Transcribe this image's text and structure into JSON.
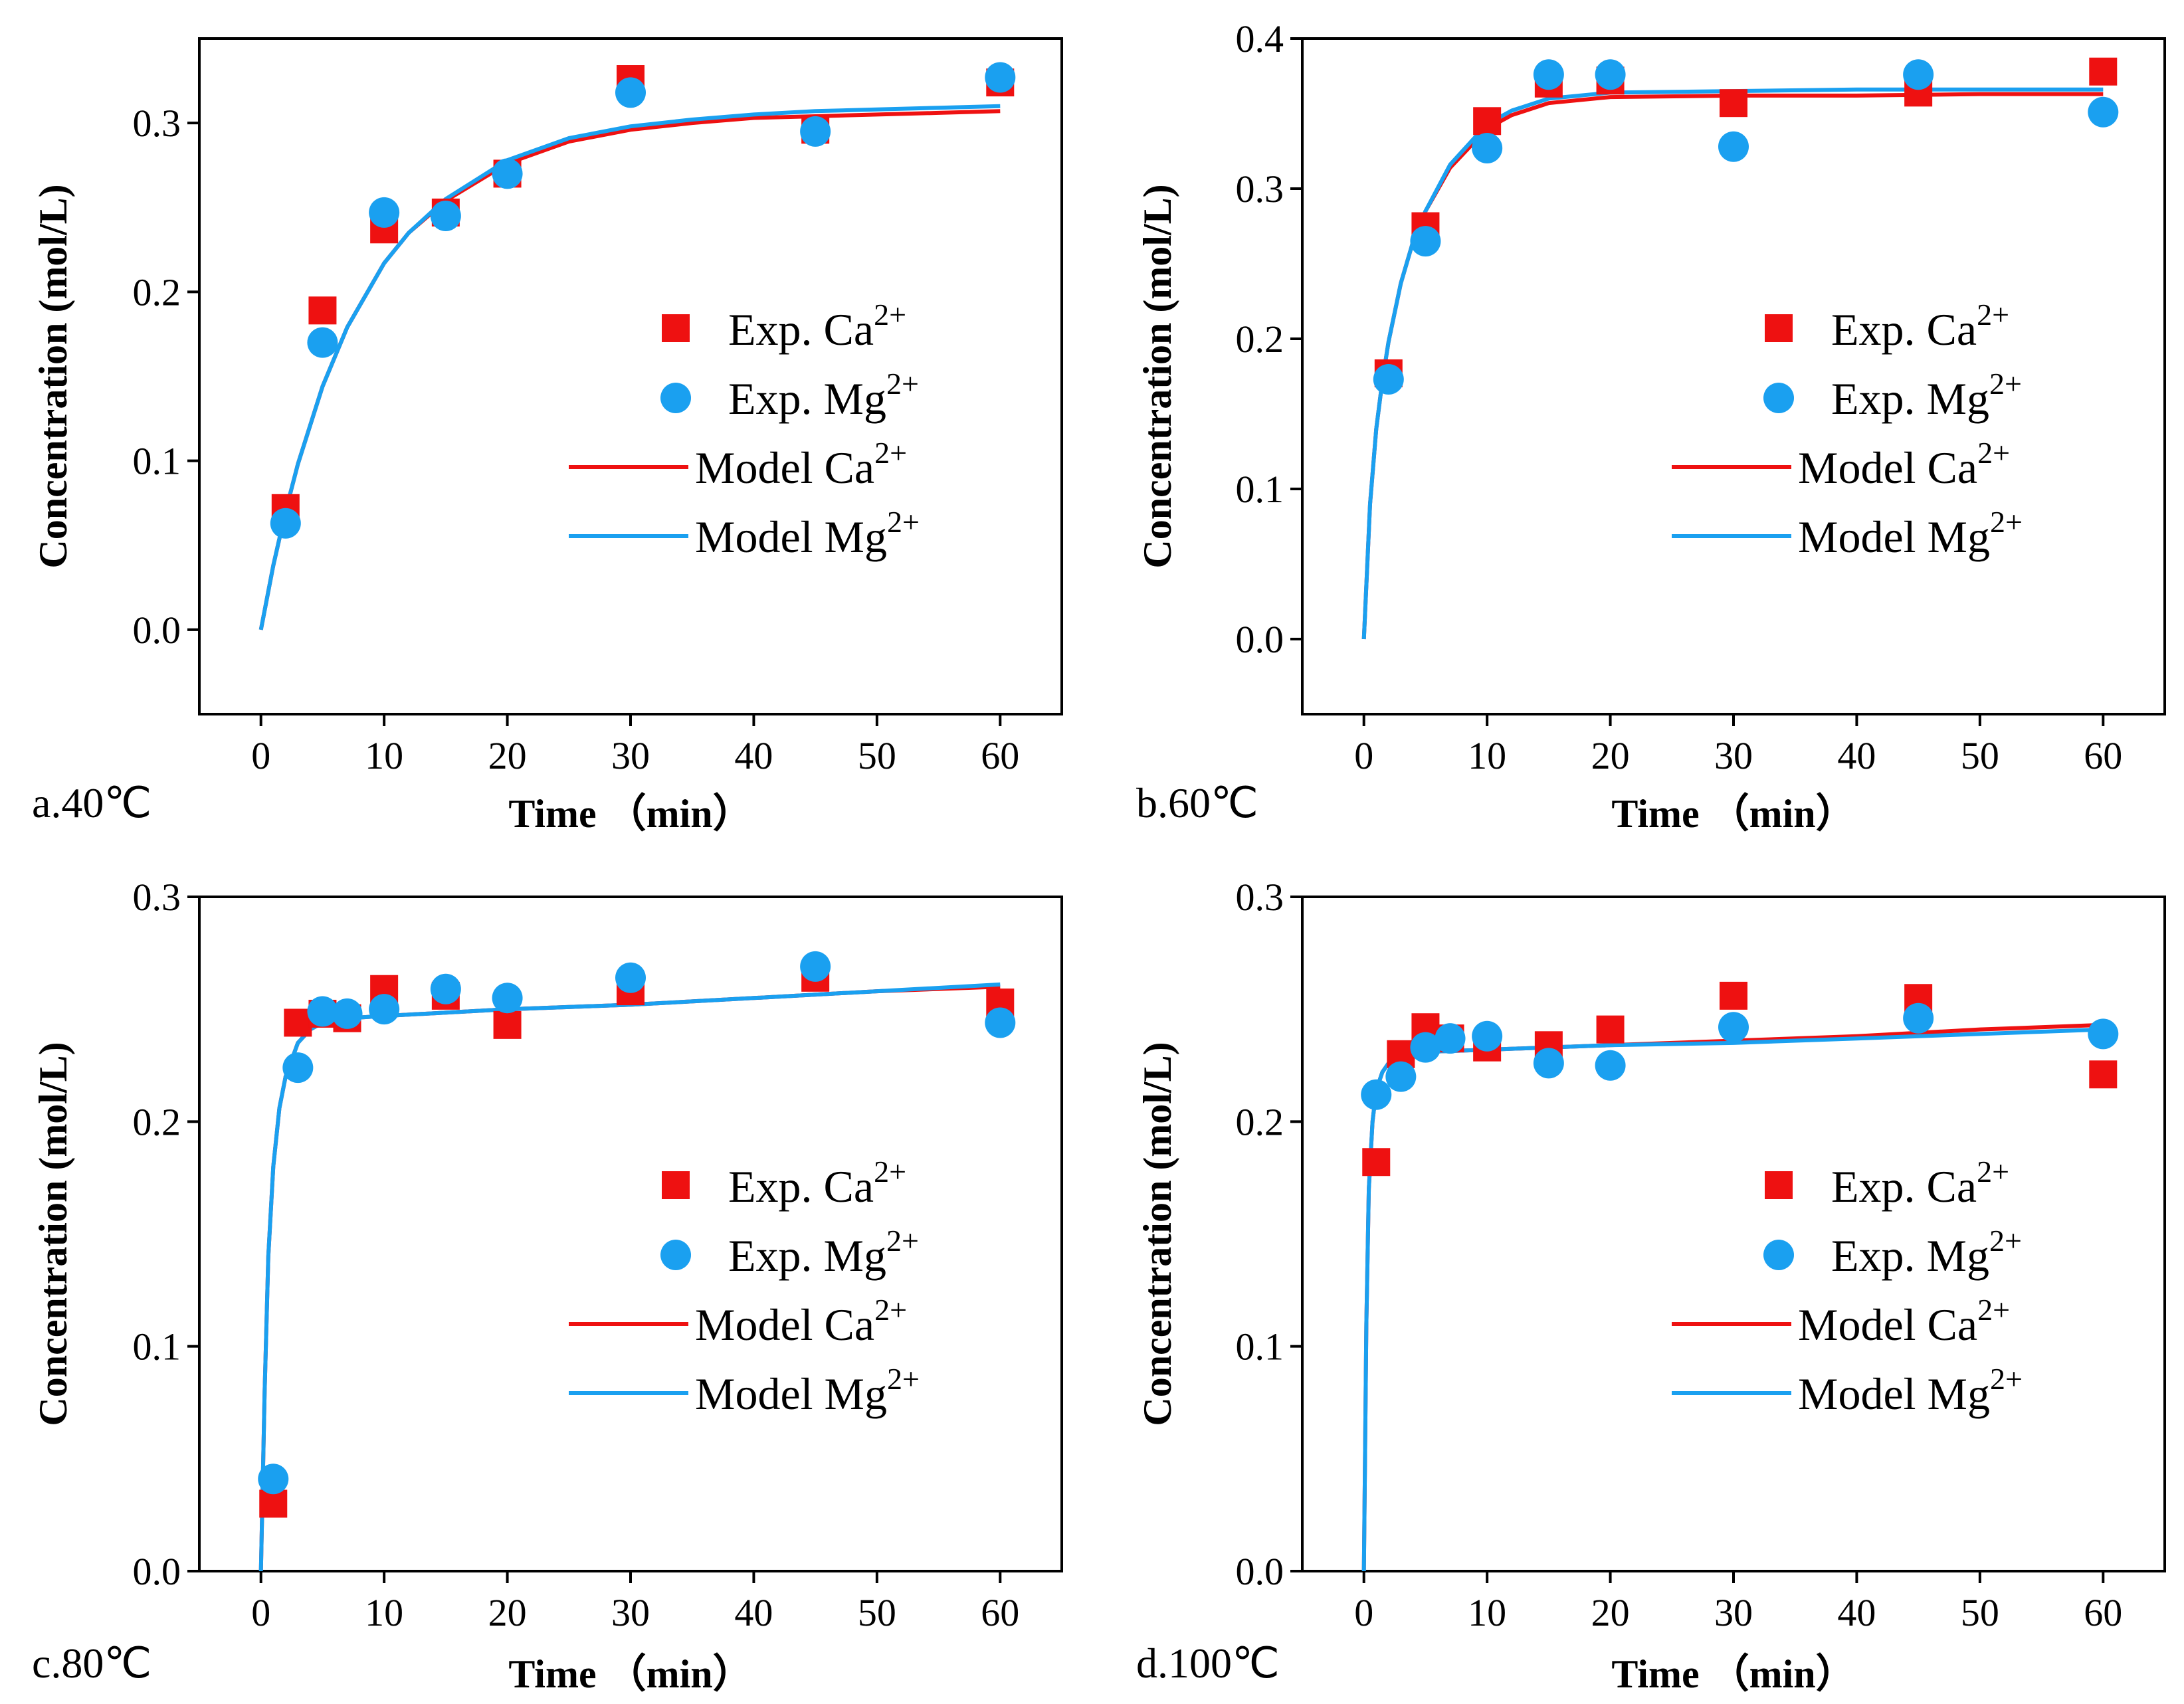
{
  "colors": {
    "ca": "#ee1111",
    "mg": "#1aa0f0",
    "axis": "#000000"
  },
  "chart_data": [
    {
      "type": "scatter",
      "panel_label": "a.40℃",
      "xlabel": "Time （min）",
      "ylabel": "Concentration (mol/L)",
      "xlim": [
        -5,
        65
      ],
      "ylim": [
        -0.05,
        0.35
      ],
      "xticks": [
        0,
        10,
        20,
        30,
        40,
        50,
        60
      ],
      "xtick_labels": [
        "0",
        "10",
        "20",
        "30",
        "40",
        "50",
        "60"
      ],
      "yticks": [
        0.0,
        0.1,
        0.2,
        0.3
      ],
      "ytick_labels": [
        "0.0",
        "0.1",
        "0.2",
        "0.3"
      ],
      "legend": {
        "placement": "center-right",
        "entries": [
          {
            "text": "Exp. Ca",
            "sup": "2+"
          },
          {
            "text": "Exp. Mg",
            "sup": "2+"
          },
          {
            "text": "Model Ca",
            "sup": "2+"
          },
          {
            "text": "Model Mg",
            "sup": "2+"
          }
        ]
      },
      "series": [
        {
          "name": "Exp. Ca2+",
          "kind": "square",
          "color": "#ee1111",
          "x": [
            2,
            5,
            10,
            15,
            20,
            30,
            45,
            60
          ],
          "y": [
            0.072,
            0.189,
            0.237,
            0.247,
            0.27,
            0.326,
            0.296,
            0.324
          ]
        },
        {
          "name": "Exp. Mg2+",
          "kind": "circle",
          "color": "#1aa0f0",
          "x": [
            2,
            5,
            10,
            15,
            20,
            30,
            45,
            60
          ],
          "y": [
            0.063,
            0.17,
            0.247,
            0.245,
            0.27,
            0.318,
            0.295,
            0.327
          ]
        },
        {
          "name": "Model Ca2+",
          "kind": "line",
          "color": "#ee1111",
          "x": [
            0,
            1,
            2,
            3,
            5,
            7,
            10,
            12,
            15,
            20,
            25,
            30,
            35,
            40,
            45,
            50,
            55,
            60
          ],
          "y": [
            0.0,
            0.038,
            0.07,
            0.098,
            0.144,
            0.179,
            0.217,
            0.235,
            0.254,
            0.276,
            0.289,
            0.296,
            0.3,
            0.303,
            0.304,
            0.305,
            0.306,
            0.307
          ]
        },
        {
          "name": "Model Mg2+",
          "kind": "line",
          "color": "#1aa0f0",
          "x": [
            0,
            1,
            2,
            3,
            5,
            7,
            10,
            12,
            15,
            20,
            25,
            30,
            35,
            40,
            45,
            50,
            55,
            60
          ],
          "y": [
            0.0,
            0.038,
            0.07,
            0.098,
            0.144,
            0.179,
            0.217,
            0.235,
            0.255,
            0.278,
            0.291,
            0.298,
            0.302,
            0.305,
            0.307,
            0.308,
            0.309,
            0.31
          ]
        }
      ]
    },
    {
      "type": "scatter",
      "panel_label": "b.60℃",
      "xlabel": "Time （min）",
      "ylabel": "Concentration (mol/L)",
      "xlim": [
        -5,
        65
      ],
      "ylim": [
        -0.05,
        0.4
      ],
      "xticks": [
        0,
        10,
        20,
        30,
        40,
        50,
        60
      ],
      "xtick_labels": [
        "0",
        "10",
        "20",
        "30",
        "40",
        "50",
        "60"
      ],
      "yticks": [
        0.0,
        0.1,
        0.2,
        0.3,
        0.4
      ],
      "ytick_labels": [
        "0.0",
        "0.1",
        "0.2",
        "0.3",
        "0.4"
      ],
      "legend": {
        "placement": "center-right",
        "entries": [
          {
            "text": "Exp. Ca",
            "sup": "2+"
          },
          {
            "text": "Exp. Mg",
            "sup": "2+"
          },
          {
            "text": "Model Ca",
            "sup": "2+"
          },
          {
            "text": "Model Mg",
            "sup": "2+"
          }
        ]
      },
      "series": [
        {
          "name": "Exp. Ca2+",
          "kind": "square",
          "color": "#ee1111",
          "x": [
            2,
            5,
            10,
            15,
            20,
            30,
            45,
            60
          ],
          "y": [
            0.177,
            0.275,
            0.345,
            0.37,
            0.372,
            0.357,
            0.364,
            0.378
          ]
        },
        {
          "name": "Exp. Mg2+",
          "kind": "circle",
          "color": "#1aa0f0",
          "x": [
            2,
            5,
            10,
            15,
            20,
            30,
            45,
            60
          ],
          "y": [
            0.173,
            0.265,
            0.327,
            0.376,
            0.376,
            0.328,
            0.376,
            0.351
          ]
        },
        {
          "name": "Model Ca2+",
          "kind": "line",
          "color": "#ee1111",
          "x": [
            0,
            0.5,
            1,
            1.5,
            2,
            3,
            4,
            5,
            7,
            10,
            12,
            15,
            20,
            30,
            40,
            50,
            60
          ],
          "y": [
            0.0,
            0.09,
            0.14,
            0.172,
            0.198,
            0.237,
            0.265,
            0.285,
            0.314,
            0.34,
            0.349,
            0.357,
            0.361,
            0.362,
            0.362,
            0.363,
            0.363
          ]
        },
        {
          "name": "Model Mg2+",
          "kind": "line",
          "color": "#1aa0f0",
          "x": [
            0,
            0.5,
            1,
            1.5,
            2,
            3,
            4,
            5,
            7,
            10,
            12,
            15,
            20,
            30,
            40,
            50,
            60
          ],
          "y": [
            0.0,
            0.09,
            0.14,
            0.172,
            0.198,
            0.237,
            0.265,
            0.285,
            0.316,
            0.343,
            0.352,
            0.36,
            0.364,
            0.365,
            0.366,
            0.366,
            0.366
          ]
        }
      ]
    },
    {
      "type": "scatter",
      "panel_label": "c.80℃",
      "xlabel": "Time （min）",
      "ylabel": "Concentration (mol/L)",
      "xlim": [
        -5,
        65
      ],
      "ylim": [
        0.0,
        0.3
      ],
      "xticks": [
        0,
        10,
        20,
        30,
        40,
        50,
        60
      ],
      "xtick_labels": [
        "0",
        "10",
        "20",
        "30",
        "40",
        "50",
        "60"
      ],
      "yticks": [
        0.0,
        0.1,
        0.2,
        0.3
      ],
      "ytick_labels": [
        "0.0",
        "0.1",
        "0.2",
        "0.3"
      ],
      "legend": {
        "placement": "center-right",
        "entries": [
          {
            "text": "Exp. Ca",
            "sup": "2+"
          },
          {
            "text": "Exp. Mg",
            "sup": "2+"
          },
          {
            "text": "Model Ca",
            "sup": "2+"
          },
          {
            "text": "Model Mg",
            "sup": "2+"
          }
        ]
      },
      "series": [
        {
          "name": "Exp. Ca2+",
          "kind": "square",
          "color": "#ee1111",
          "x": [
            1,
            3,
            5,
            7,
            10,
            15,
            20,
            30,
            45,
            60
          ],
          "y": [
            0.03,
            0.244,
            0.248,
            0.246,
            0.259,
            0.256,
            0.243,
            0.258,
            0.264,
            0.253
          ]
        },
        {
          "name": "Exp. Mg2+",
          "kind": "circle",
          "color": "#1aa0f0",
          "x": [
            1,
            3,
            5,
            7,
            10,
            15,
            20,
            30,
            45,
            60
          ],
          "y": [
            0.041,
            0.224,
            0.249,
            0.248,
            0.25,
            0.259,
            0.255,
            0.264,
            0.269,
            0.244
          ]
        },
        {
          "name": "Model Ca2+",
          "kind": "line",
          "color": "#ee1111",
          "x": [
            0,
            0.3,
            0.6,
            1,
            1.5,
            2,
            3,
            4,
            5,
            7,
            10,
            20,
            30,
            40,
            50,
            60
          ],
          "y": [
            0.0,
            0.08,
            0.14,
            0.18,
            0.206,
            0.22,
            0.235,
            0.241,
            0.244,
            0.246,
            0.247,
            0.25,
            0.252,
            0.255,
            0.258,
            0.26
          ]
        },
        {
          "name": "Model Mg2+",
          "kind": "line",
          "color": "#1aa0f0",
          "x": [
            0,
            0.3,
            0.6,
            1,
            1.5,
            2,
            3,
            4,
            5,
            7,
            10,
            20,
            30,
            40,
            50,
            60
          ],
          "y": [
            0.0,
            0.08,
            0.14,
            0.18,
            0.206,
            0.22,
            0.235,
            0.241,
            0.244,
            0.246,
            0.247,
            0.25,
            0.252,
            0.255,
            0.258,
            0.261
          ]
        }
      ]
    },
    {
      "type": "scatter",
      "panel_label": "d.100℃",
      "xlabel": "Time （min）",
      "ylabel": "Concentration (mol/L)",
      "xlim": [
        -5,
        65
      ],
      "ylim": [
        0.0,
        0.3
      ],
      "xticks": [
        0,
        10,
        20,
        30,
        40,
        50,
        60
      ],
      "xtick_labels": [
        "0",
        "10",
        "20",
        "30",
        "40",
        "50",
        "60"
      ],
      "yticks": [
        0.0,
        0.1,
        0.2,
        0.3
      ],
      "ytick_labels": [
        "0.0",
        "0.1",
        "0.2",
        "0.3"
      ],
      "legend": {
        "placement": "center-right",
        "entries": [
          {
            "text": "Exp. Ca",
            "sup": "2+"
          },
          {
            "text": "Exp. Mg",
            "sup": "2+"
          },
          {
            "text": "Model Ca",
            "sup": "2+"
          },
          {
            "text": "Model Mg",
            "sup": "2+"
          }
        ]
      },
      "series": [
        {
          "name": "Exp. Ca2+",
          "kind": "square",
          "color": "#ee1111",
          "x": [
            1,
            3,
            5,
            7,
            10,
            15,
            20,
            30,
            45,
            60
          ],
          "y": [
            0.182,
            0.23,
            0.242,
            0.237,
            0.233,
            0.234,
            0.241,
            0.256,
            0.255,
            0.221
          ]
        },
        {
          "name": "Exp. Mg2+",
          "kind": "circle",
          "color": "#1aa0f0",
          "x": [
            1,
            3,
            5,
            7,
            10,
            15,
            20,
            30,
            45,
            60
          ],
          "y": [
            0.212,
            0.22,
            0.233,
            0.237,
            0.238,
            0.226,
            0.225,
            0.242,
            0.246,
            0.239
          ]
        },
        {
          "name": "Model Ca2+",
          "kind": "line",
          "color": "#ee1111",
          "x": [
            0,
            0.2,
            0.4,
            0.7,
            1,
            1.5,
            2,
            3,
            5,
            10,
            20,
            30,
            40,
            50,
            60
          ],
          "y": [
            0.0,
            0.11,
            0.17,
            0.2,
            0.214,
            0.222,
            0.226,
            0.229,
            0.231,
            0.232,
            0.234,
            0.236,
            0.238,
            0.241,
            0.243
          ]
        },
        {
          "name": "Model Mg2+",
          "kind": "line",
          "color": "#1aa0f0",
          "x": [
            0,
            0.2,
            0.4,
            0.7,
            1,
            1.5,
            2,
            3,
            5,
            10,
            20,
            30,
            40,
            50,
            60
          ],
          "y": [
            0.0,
            0.11,
            0.17,
            0.2,
            0.214,
            0.222,
            0.226,
            0.229,
            0.231,
            0.232,
            0.234,
            0.235,
            0.237,
            0.239,
            0.241
          ]
        }
      ]
    }
  ]
}
